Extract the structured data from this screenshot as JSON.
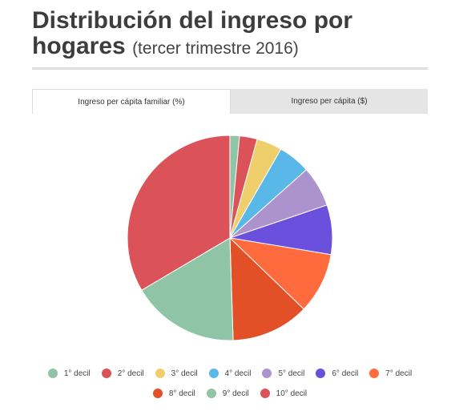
{
  "header": {
    "title": "Distribución del ingreso por hogares",
    "subtitle": "(tercer trimestre 2016)"
  },
  "tabs": [
    {
      "label": "Ingreso per cápita familiar (%)",
      "active": true
    },
    {
      "label": "Ingreso per cápita ($)",
      "active": false
    }
  ],
  "chart_data": {
    "type": "pie",
    "title": "",
    "categories": [
      "1° decil",
      "2° decil",
      "3° decil",
      "4° decil",
      "5° decil",
      "6° decil",
      "7° decil",
      "8° decil",
      "9° decil",
      "10° decil"
    ],
    "values": [
      1.5,
      2.8,
      4.0,
      5.1,
      6.4,
      7.8,
      9.6,
      12.3,
      17.0,
      33.5
    ],
    "colors": [
      "#8fc5a6",
      "#db5358",
      "#efcf6c",
      "#5ab8e8",
      "#ac93cd",
      "#6b4fdd",
      "#ff6b3c",
      "#e34f27",
      "#8fc5a6",
      "#db5358"
    ],
    "legend_position": "bottom"
  }
}
